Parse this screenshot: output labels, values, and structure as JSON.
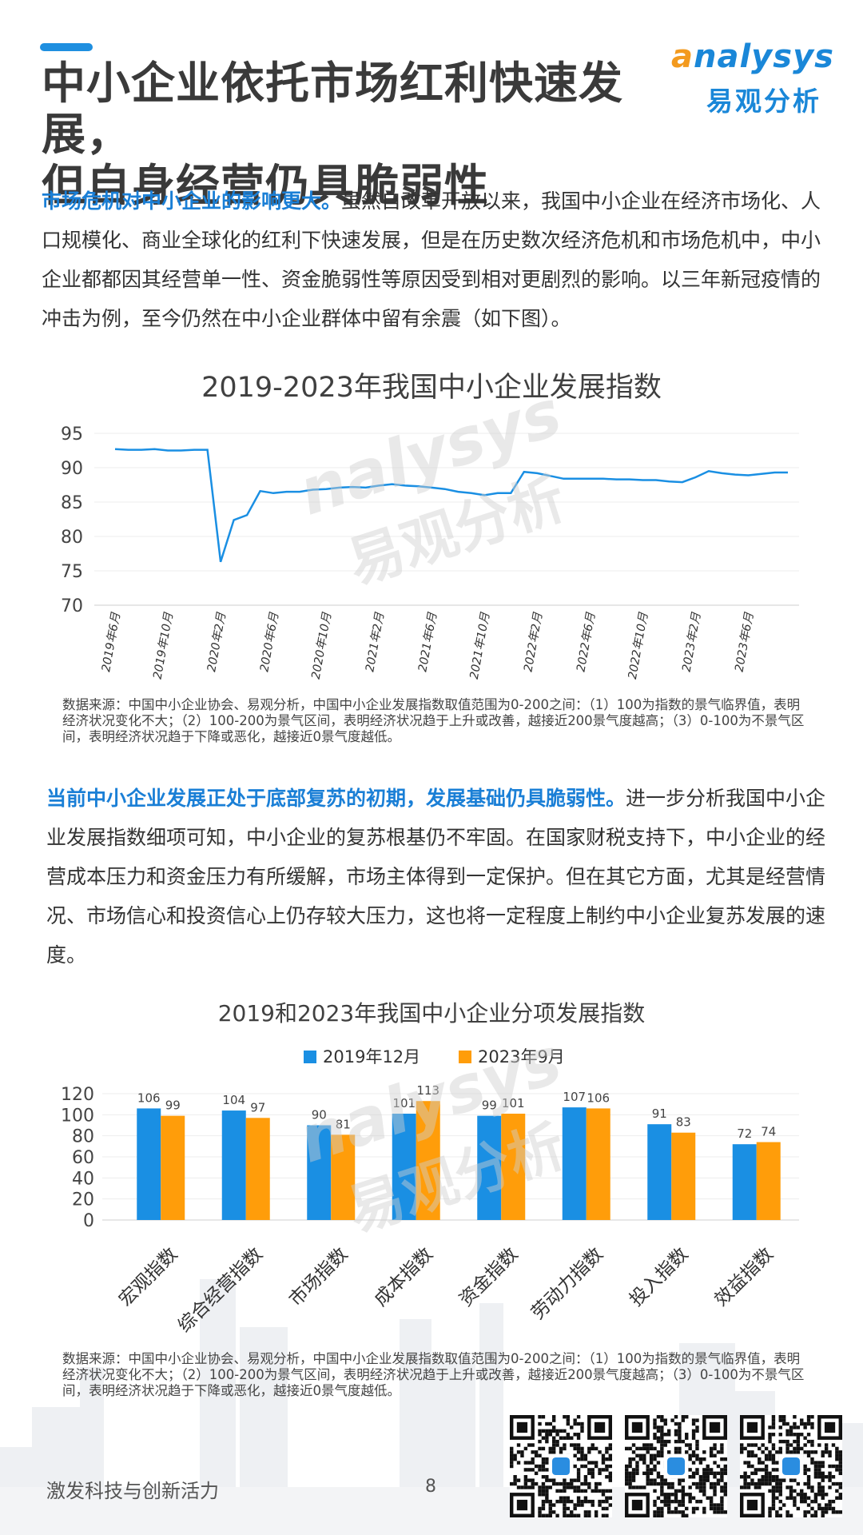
{
  "header": {
    "title_line1": "中小企业依托市场红利快速发展，",
    "title_line2": "但自身经营仍具脆弱性",
    "logo_en_o": "a",
    "logo_en_rest": "nalysys",
    "logo_cn": "易观分析"
  },
  "para1": {
    "lead": "市场危机对中小企业的影响更大。",
    "body": "虽然自改革开放以来，我国中小企业在经济市场化、人口规模化、商业全球化的红利下快速发展，但是在历史数次经济危机和市场危机中，中小企业都都因其经营单一性、资金脆弱性等原因受到相对更剧烈的影响。以三年新冠疫情的冲击为例，至今仍然在中小企业群体中留有余震（如下图）。"
  },
  "para2": {
    "lead": "当前中小企业发展正处于底部复苏的初期，发展基础仍具脆弱性。",
    "body": "进一步分析我国中小企业发展指数细项可知，中小企业的复苏根基仍不牢固。在国家财税支持下，中小企业的经营成本压力和资金压力有所缓解，市场主体得到一定保护。但在其它方面，尤其是经营情况、市场信心和投资信心上仍存较大压力，这也将一定程度上制约中小企业复苏发展的速度。"
  },
  "note": "数据来源：中国中小企业协会、易观分析，中国中小企业发展指数取值范围为0-200之间：（1）100为指数的景气临界值，表明经济状况变化不大；（2）100-200为景气区间，表明经济状况趋于上升或改善，越接近200景气度越高；（3）0-100为不景气区间，表明经济状况趋于下降或恶化，越接近0景气度越低。",
  "watermark": {
    "en": "nalysys",
    "cn": "易观分析"
  },
  "footer": {
    "slogan": "激发科技与创新活力",
    "page": "8"
  },
  "colors": {
    "blue": "#1a8fe3",
    "orange": "#ff9d0a",
    "lead": "#1a7fd6"
  },
  "chart_data": [
    {
      "type": "line",
      "title": "2019-2023年我国中小企业发展指数",
      "ylim": [
        70,
        95
      ],
      "yticks": [
        "95",
        "90",
        "85",
        "80",
        "75",
        "70"
      ],
      "xticks": [
        "2019年6月",
        "2019年10月",
        "2020年2月",
        "2020年6月",
        "2020年10月",
        "2021年2月",
        "2021年6月",
        "2021年10月",
        "2022年2月",
        "2022年6月",
        "2022年10月",
        "2023年2月",
        "2023年6月"
      ],
      "x": [
        "2019-06",
        "2019-07",
        "2019-08",
        "2019-09",
        "2019-10",
        "2019-11",
        "2019-12",
        "2020-01",
        "2020-02",
        "2020-03",
        "2020-04",
        "2020-05",
        "2020-06",
        "2020-07",
        "2020-08",
        "2020-09",
        "2020-10",
        "2020-11",
        "2020-12",
        "2021-01",
        "2021-02",
        "2021-03",
        "2021-04",
        "2021-05",
        "2021-06",
        "2021-07",
        "2021-08",
        "2021-09",
        "2021-10",
        "2021-11",
        "2021-12",
        "2022-01",
        "2022-02",
        "2022-03",
        "2022-04",
        "2022-05",
        "2022-06",
        "2022-07",
        "2022-08",
        "2022-09",
        "2022-10",
        "2022-11",
        "2022-12",
        "2023-01",
        "2023-02",
        "2023-03",
        "2023-04",
        "2023-05",
        "2023-06",
        "2023-07",
        "2023-08",
        "2023-09"
      ],
      "values": [
        92.7,
        92.6,
        92.6,
        92.7,
        92.5,
        92.5,
        92.6,
        92.6,
        76.3,
        82.4,
        83.1,
        86.6,
        86.3,
        86.5,
        86.5,
        86.8,
        86.9,
        87.1,
        87.2,
        87.1,
        87.4,
        87.6,
        87.4,
        87.3,
        87.1,
        86.9,
        86.5,
        86.3,
        86.0,
        86.3,
        86.3,
        89.4,
        89.2,
        88.8,
        88.4,
        88.4,
        88.4,
        88.4,
        88.3,
        88.3,
        88.2,
        88.2,
        88.0,
        87.9,
        88.6,
        89.5,
        89.2,
        89.0,
        88.9,
        89.1,
        89.3,
        89.3
      ],
      "grid": true
    },
    {
      "type": "bar",
      "title": "2019和2023年我国中小企业分项发展指数",
      "categories": [
        "宏观指数",
        "综合经营指数",
        "市场指数",
        "成本指数",
        "资金指数",
        "劳动力指数",
        "投入指数",
        "效益指数"
      ],
      "series": [
        {
          "name": "2019年12月",
          "values": [
            106,
            104,
            90,
            101,
            99,
            107,
            91,
            72
          ]
        },
        {
          "name": "2023年9月",
          "values": [
            99,
            97,
            81,
            113,
            101,
            106,
            83,
            74
          ]
        }
      ],
      "ylim": [
        0,
        120
      ],
      "yticks": [
        "120",
        "100",
        "80",
        "60",
        "40",
        "20",
        "0"
      ],
      "legend": "top-center",
      "grid": true
    }
  ]
}
